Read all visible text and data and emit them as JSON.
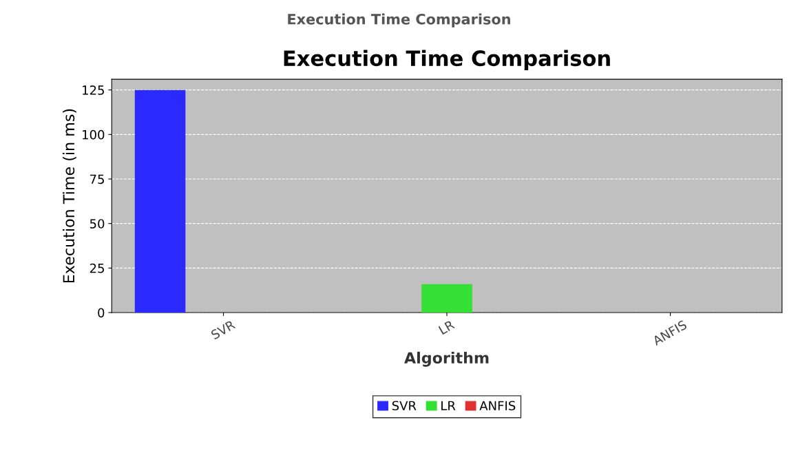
{
  "chart_data": {
    "type": "bar",
    "title": "Execution Time Comparison",
    "xlabel": "Algorithm",
    "ylabel": "Execution Time (in ms)",
    "annotations": [
      "Execution Time Comparison"
    ],
    "categories": [
      "SVR",
      "LR",
      "ANFIS"
    ],
    "series": [
      {
        "name": "SVR",
        "color": "#2a2aff",
        "values": [
          125,
          null,
          null
        ]
      },
      {
        "name": "LR",
        "color": "#33e033",
        "values": [
          null,
          16,
          null
        ]
      },
      {
        "name": "ANFIS",
        "color": "#e03030",
        "values": [
          null,
          null,
          0
        ]
      }
    ],
    "ylim": [
      0,
      131
    ],
    "yticks": [
      0,
      25,
      50,
      75,
      100,
      125
    ],
    "grid": "y",
    "legend": "bottom"
  }
}
